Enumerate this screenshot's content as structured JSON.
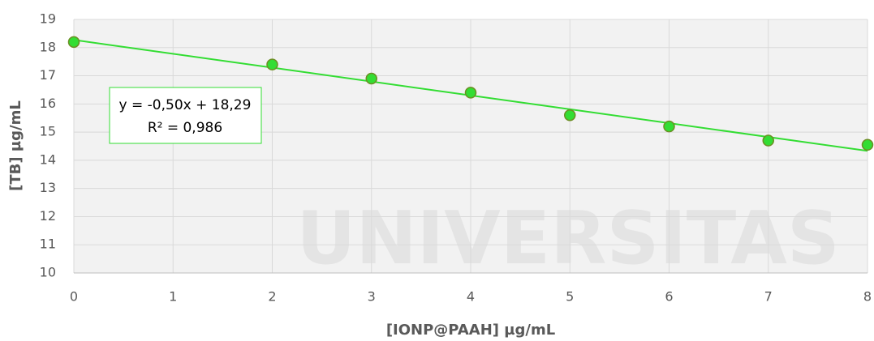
{
  "chart_data": {
    "type": "scatter",
    "x": [
      0,
      2,
      3,
      4,
      5,
      6,
      7,
      8
    ],
    "values": [
      18.2,
      17.4,
      16.9,
      16.4,
      15.6,
      15.2,
      14.7,
      14.55
    ],
    "color": "#33dd33",
    "xlim": [
      0,
      8
    ],
    "xticks": [
      0,
      1,
      2,
      3,
      4,
      5,
      6,
      7,
      8
    ],
    "ylim": [
      10,
      19
    ],
    "yticks": [
      10,
      11,
      12,
      13,
      14,
      15,
      16,
      17,
      18,
      19
    ],
    "xlabel": "[IONP@PAAH] µg/mL",
    "ylabel": "[TB] µg/mL",
    "annotation": [
      "y = -0,50x + 18,29",
      "R² = 0,986"
    ],
    "trendline": "linear",
    "grid": true,
    "watermark": "UNIVERSITAS"
  }
}
